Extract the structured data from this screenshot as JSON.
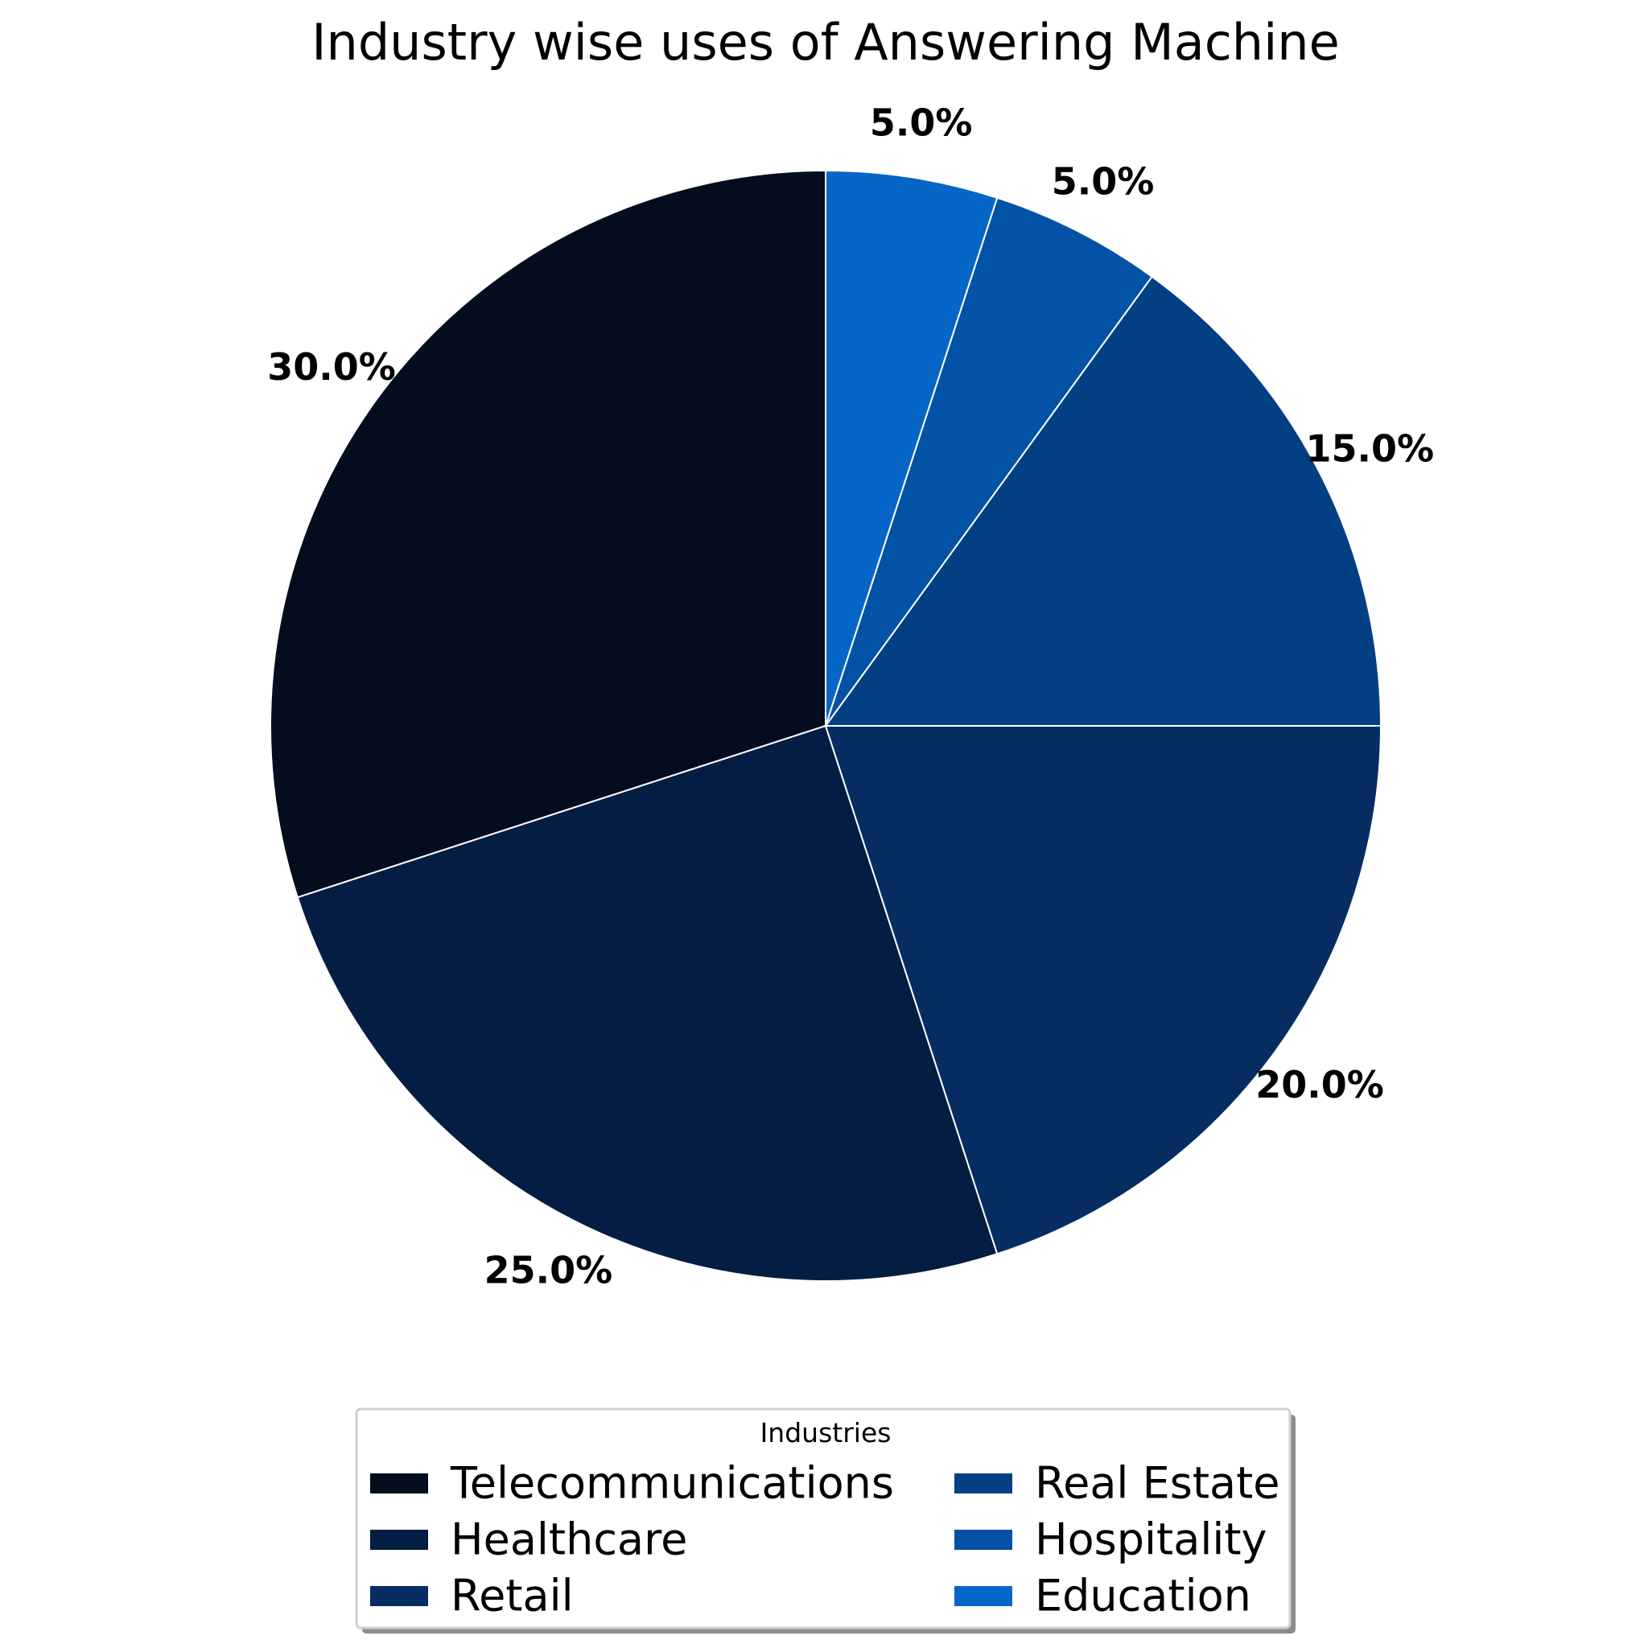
{
  "chart_data": {
    "type": "pie",
    "title": "Industry wise uses of Answering Machine",
    "categories": [
      "Telecommunications",
      "Healthcare",
      "Retail",
      "Real Estate",
      "Hospitality",
      "Education"
    ],
    "values": [
      30,
      25,
      20,
      15,
      5,
      5
    ],
    "value_labels": [
      "30.0%",
      "25.0%",
      "20.0%",
      "15.0%",
      "5.0%",
      "5.0%"
    ],
    "colors": [
      "#030d1e",
      "#041d43",
      "#052d62",
      "#033f83",
      "#0352a6",
      "#0666c8"
    ],
    "start_angle_deg": 90,
    "direction": "counterclockwise",
    "legend": {
      "title": "Industries",
      "placement": "bottom-center",
      "columns": 2
    }
  }
}
